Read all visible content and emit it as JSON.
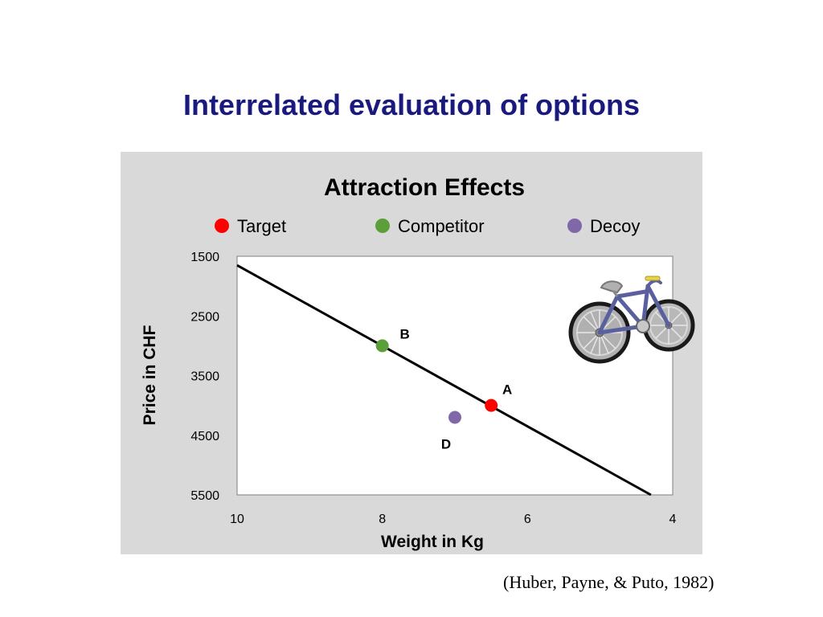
{
  "slide": {
    "title": "Interrelated evaluation of options",
    "citation": "(Huber, Payne, & Puto, 1982)"
  },
  "colors": {
    "title": "#1a1a7e",
    "panel_background": "#d9d9d9",
    "target": "#ff0000",
    "competitor": "#5b9f3b",
    "decoy": "#8068a8"
  },
  "icons": [
    "bicycle-icon"
  ],
  "chart_data": {
    "type": "scatter",
    "title": "Attraction Effects",
    "xlabel": "Weight in Kg",
    "ylabel": "Price in CHF",
    "xlim": [
      10,
      4
    ],
    "ylim": [
      1500,
      5500
    ],
    "x_reversed": true,
    "y_reversed": true,
    "xticks": [
      10,
      8,
      6,
      4
    ],
    "xtick_labels": [
      "10",
      "8",
      "6",
      "4"
    ],
    "yticks": [
      1500,
      2500,
      3500,
      4500,
      5500
    ],
    "ytick_labels": [
      "1500",
      "2500",
      "3500",
      "4500",
      "5500"
    ],
    "grid": false,
    "legend_position": "top",
    "series": [
      {
        "name": "Target",
        "color": "#ff0000",
        "points": [
          {
            "x": 6.5,
            "y": 4000,
            "label": "A"
          }
        ]
      },
      {
        "name": "Competitor",
        "color": "#5b9f3b",
        "points": [
          {
            "x": 8.0,
            "y": 3000,
            "label": "B"
          }
        ]
      },
      {
        "name": "Decoy",
        "color": "#8068a8",
        "points": [
          {
            "x": 7.0,
            "y": 4200,
            "label": "D"
          }
        ]
      }
    ],
    "trend_line": {
      "x": [
        10,
        4.3
      ],
      "y": [
        1650,
        5500
      ]
    }
  }
}
